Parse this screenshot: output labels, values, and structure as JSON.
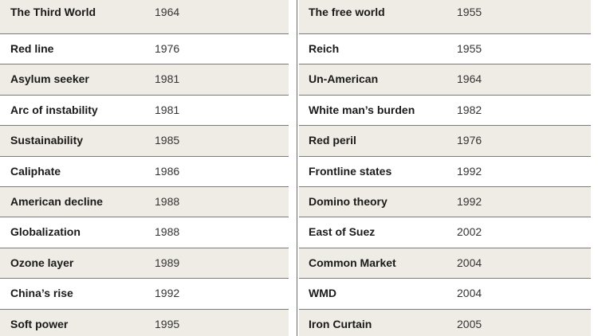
{
  "left_table": [
    {
      "term": "The Third World",
      "year": "1964"
    },
    {
      "term": "Red line",
      "year": "1976"
    },
    {
      "term": "Asylum seeker",
      "year": "1981"
    },
    {
      "term": "Arc of instability",
      "year": "1981"
    },
    {
      "term": "Sustainability",
      "year": "1985"
    },
    {
      "term": "Caliphate",
      "year": "1986"
    },
    {
      "term": "American decline",
      "year": "1988"
    },
    {
      "term": "Globalization",
      "year": "1988"
    },
    {
      "term": "Ozone layer",
      "year": "1989"
    },
    {
      "term": "China’s rise",
      "year": "1992"
    },
    {
      "term": "Soft power",
      "year": "1995"
    }
  ],
  "right_table": [
    {
      "term": "The free world",
      "year": "1955"
    },
    {
      "term": "Reich",
      "year": "1955"
    },
    {
      "term": "Un-American",
      "year": "1964"
    },
    {
      "term": "White man’s burden",
      "year": "1982"
    },
    {
      "term": "Red peril",
      "year": "1976"
    },
    {
      "term": "Frontline states",
      "year": "1992"
    },
    {
      "term": "Domino theory",
      "year": "1992"
    },
    {
      "term": "East of Suez",
      "year": "2002"
    },
    {
      "term": "Common Market",
      "year": "2004"
    },
    {
      "term": "WMD",
      "year": "2004"
    },
    {
      "term": "Iron Curtain",
      "year": "2005"
    }
  ],
  "colors": {
    "shaded_row": "#efece6",
    "plain_row": "#ffffff",
    "rule": "#7a7a7a"
  }
}
